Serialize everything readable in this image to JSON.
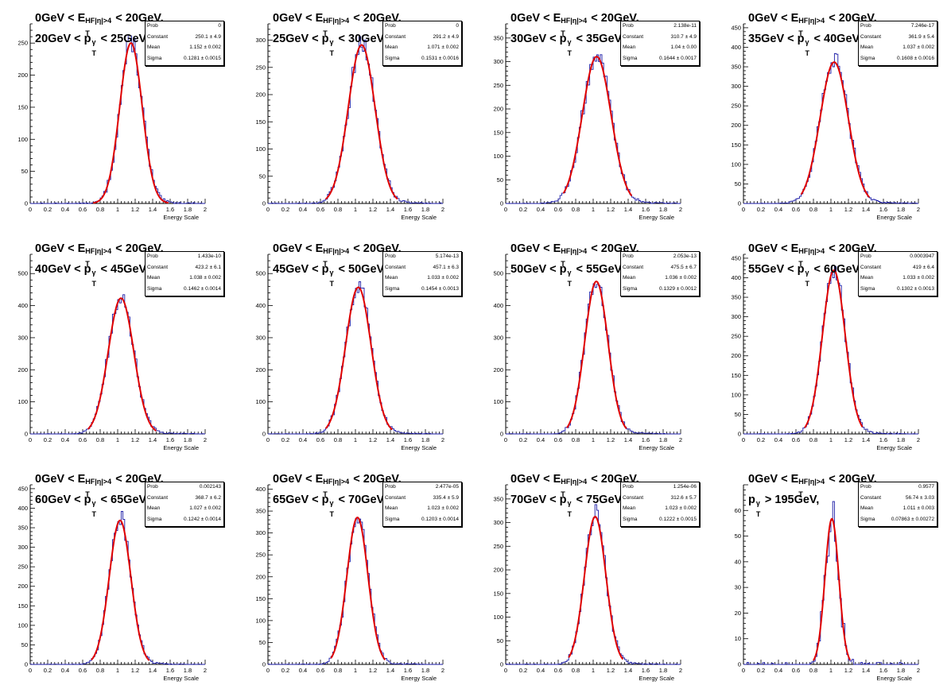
{
  "axis_title_x": "Energy Scale",
  "title_line1": {
    "pre": "0GeV < E",
    "sup": "HF|η|>4",
    "sub": "T",
    "post": " < 20GeV,"
  },
  "stat_labels": {
    "prob": "Prob",
    "constant": "Constant",
    "mean": "Mean",
    "sigma": "Sigma"
  },
  "colors": {
    "histogram": "#1a1aa6",
    "fit": "#e00000",
    "axis": "#000000"
  },
  "chart_data": [
    {
      "type": "histogram",
      "pt_range": "20GeV < p",
      "pt_post": " < 25GeV,",
      "xlim": [
        0,
        2
      ],
      "ylim": [
        0,
        280
      ],
      "yticks": [
        0,
        50,
        100,
        150,
        200,
        250
      ],
      "xticks": [
        0,
        0.2,
        0.4,
        0.6,
        0.8,
        1,
        1.2,
        1.4,
        1.6,
        1.8,
        2
      ],
      "stats": {
        "prob": "0",
        "constant": "250.1 ± 4.9",
        "mean": "1.152 ± 0.002",
        "sigma": "0.1281 ± 0.0015"
      },
      "fit": {
        "constant": 250.1,
        "mean": 1.152,
        "sigma": 0.1281,
        "range": [
          0.72,
          1.58
        ]
      }
    },
    {
      "type": "histogram",
      "pt_range": "25GeV < p",
      "pt_post": " < 30GeV,",
      "xlim": [
        0,
        2
      ],
      "ylim": [
        0,
        330
      ],
      "yticks": [
        0,
        50,
        100,
        150,
        200,
        250,
        300
      ],
      "xticks": [
        0,
        0.2,
        0.4,
        0.6,
        0.8,
        1,
        1.2,
        1.4,
        1.6,
        1.8,
        2
      ],
      "stats": {
        "prob": "0",
        "constant": "291.2 ± 4.9",
        "mean": "1.071 ± 0.002",
        "sigma": "0.1531 ± 0.0016"
      },
      "fit": {
        "constant": 291.2,
        "mean": 1.071,
        "sigma": 0.1531,
        "range": [
          0.66,
          1.48
        ]
      }
    },
    {
      "type": "histogram",
      "pt_range": "30GeV < p",
      "pt_post": " < 35GeV,",
      "xlim": [
        0,
        2
      ],
      "ylim": [
        0,
        380
      ],
      "yticks": [
        0,
        50,
        100,
        150,
        200,
        250,
        300,
        350
      ],
      "xticks": [
        0,
        0.2,
        0.4,
        0.6,
        0.8,
        1,
        1.2,
        1.4,
        1.6,
        1.8,
        2
      ],
      "stats": {
        "prob": "2.138e-11",
        "constant": "310.7 ± 4.9",
        "mean": "1.04 ± 0.00",
        "sigma": "0.1644 ± 0.0017"
      },
      "fit": {
        "constant": 310.7,
        "mean": 1.04,
        "sigma": 0.1644,
        "range": [
          0.66,
          1.44
        ]
      }
    },
    {
      "type": "histogram",
      "pt_range": "35GeV < p",
      "pt_post": " < 40GeV,",
      "xlim": [
        0,
        2
      ],
      "ylim": [
        0,
        460
      ],
      "yticks": [
        0,
        50,
        100,
        150,
        200,
        250,
        300,
        350,
        400,
        450
      ],
      "xticks": [
        0,
        0.2,
        0.4,
        0.6,
        0.8,
        1,
        1.2,
        1.4,
        1.6,
        1.8,
        2
      ],
      "stats": {
        "prob": "7.246e-17",
        "constant": "361.9 ± 5.4",
        "mean": "1.037 ± 0.002",
        "sigma": "0.1608 ± 0.0016"
      },
      "fit": {
        "constant": 361.9,
        "mean": 1.037,
        "sigma": 0.1608,
        "range": [
          0.66,
          1.44
        ]
      }
    },
    {
      "type": "histogram",
      "pt_range": "40GeV < p",
      "pt_post": " < 45GeV,",
      "xlim": [
        0,
        2
      ],
      "ylim": [
        0,
        560
      ],
      "yticks": [
        0,
        100,
        200,
        300,
        400,
        500
      ],
      "xticks": [
        0,
        0.2,
        0.4,
        0.6,
        0.8,
        1,
        1.2,
        1.4,
        1.6,
        1.8,
        2
      ],
      "stats": {
        "prob": "1.433e-10",
        "constant": "423.2 ± 6.1",
        "mean": "1.038 ± 0.002",
        "sigma": "0.1462 ± 0.0014"
      },
      "fit": {
        "constant": 423.2,
        "mean": 1.038,
        "sigma": 0.1462,
        "range": [
          0.66,
          1.44
        ]
      }
    },
    {
      "type": "histogram",
      "pt_range": "45GeV < p",
      "pt_post": " < 50GeV,",
      "xlim": [
        0,
        2
      ],
      "ylim": [
        0,
        560
      ],
      "yticks": [
        0,
        100,
        200,
        300,
        400,
        500
      ],
      "xticks": [
        0,
        0.2,
        0.4,
        0.6,
        0.8,
        1,
        1.2,
        1.4,
        1.6,
        1.8,
        2
      ],
      "stats": {
        "prob": "5.174e-13",
        "constant": "457.1 ± 6.3",
        "mean": "1.033 ± 0.002",
        "sigma": "0.1454 ± 0.0013"
      },
      "fit": {
        "constant": 457.1,
        "mean": 1.033,
        "sigma": 0.1454,
        "range": [
          0.66,
          1.42
        ]
      }
    },
    {
      "type": "histogram",
      "pt_range": "50GeV < p",
      "pt_post": " < 55GeV,",
      "xlim": [
        0,
        2
      ],
      "ylim": [
        0,
        560
      ],
      "yticks": [
        0,
        100,
        200,
        300,
        400,
        500
      ],
      "xticks": [
        0,
        0.2,
        0.4,
        0.6,
        0.8,
        1,
        1.2,
        1.4,
        1.6,
        1.8,
        2
      ],
      "stats": {
        "prob": "2.053e-13",
        "constant": "475.5 ± 6.7",
        "mean": "1.036 ± 0.002",
        "sigma": "0.1329 ± 0.0012"
      },
      "fit": {
        "constant": 475.5,
        "mean": 1.036,
        "sigma": 0.1329,
        "range": [
          0.7,
          1.38
        ]
      }
    },
    {
      "type": "histogram",
      "pt_range": "55GeV < p",
      "pt_post": " < 60GeV,",
      "xlim": [
        0,
        2
      ],
      "ylim": [
        0,
        460
      ],
      "yticks": [
        0,
        50,
        100,
        150,
        200,
        250,
        300,
        350,
        400,
        450
      ],
      "xticks": [
        0,
        0.2,
        0.4,
        0.6,
        0.8,
        1,
        1.2,
        1.4,
        1.6,
        1.8,
        2
      ],
      "stats": {
        "prob": "0.0003947",
        "constant": "419 ± 6.4",
        "mean": "1.033 ± 0.002",
        "sigma": "0.1302 ± 0.0013"
      },
      "fit": {
        "constant": 419,
        "mean": 1.033,
        "sigma": 0.1302,
        "range": [
          0.7,
          1.36
        ]
      }
    },
    {
      "type": "histogram",
      "pt_range": "60GeV < p",
      "pt_post": " < 65GeV,",
      "xlim": [
        0,
        2
      ],
      "ylim": [
        0,
        460
      ],
      "yticks": [
        0,
        50,
        100,
        150,
        200,
        250,
        300,
        350,
        400,
        450
      ],
      "xticks": [
        0,
        0.2,
        0.4,
        0.6,
        0.8,
        1,
        1.2,
        1.4,
        1.6,
        1.8,
        2
      ],
      "stats": {
        "prob": "0.002143",
        "constant": "368.7 ± 6.2",
        "mean": "1.027 ± 0.002",
        "sigma": "0.1242 ± 0.0014"
      },
      "fit": {
        "constant": 368.7,
        "mean": 1.027,
        "sigma": 0.1242,
        "range": [
          0.7,
          1.36
        ]
      }
    },
    {
      "type": "histogram",
      "pt_range": "65GeV < p",
      "pt_post": " < 70GeV,",
      "xlim": [
        0,
        2
      ],
      "ylim": [
        0,
        410
      ],
      "yticks": [
        0,
        50,
        100,
        150,
        200,
        250,
        300,
        350,
        400
      ],
      "xticks": [
        0,
        0.2,
        0.4,
        0.6,
        0.8,
        1,
        1.2,
        1.4,
        1.6,
        1.8,
        2
      ],
      "stats": {
        "prob": "2.477e-05",
        "constant": "335.4 ± 5.9",
        "mean": "1.023 ± 0.002",
        "sigma": "0.1203 ± 0.0014"
      },
      "fit": {
        "constant": 335.4,
        "mean": 1.023,
        "sigma": 0.1203,
        "range": [
          0.72,
          1.34
        ]
      }
    },
    {
      "type": "histogram",
      "pt_range": "70GeV < p",
      "pt_post": " < 75GeV,",
      "xlim": [
        0,
        2
      ],
      "ylim": [
        0,
        380
      ],
      "yticks": [
        0,
        50,
        100,
        150,
        200,
        250,
        300,
        350
      ],
      "xticks": [
        0,
        0.2,
        0.4,
        0.6,
        0.8,
        1,
        1.2,
        1.4,
        1.6,
        1.8,
        2
      ],
      "stats": {
        "prob": "1.254e-06",
        "constant": "312.6 ± 5.7",
        "mean": "1.023 ± 0.002",
        "sigma": "0.1222 ± 0.0015"
      },
      "fit": {
        "constant": 312.6,
        "mean": 1.023,
        "sigma": 0.1222,
        "range": [
          0.72,
          1.34
        ]
      }
    },
    {
      "type": "histogram",
      "pt_range": "p",
      "pt_post": " > 195GeV,",
      "xlim": [
        0,
        2
      ],
      "ylim": [
        0,
        70
      ],
      "yticks": [
        0,
        10,
        20,
        30,
        40,
        50,
        60
      ],
      "xticks": [
        0,
        0.2,
        0.4,
        0.6,
        0.8,
        1,
        1.2,
        1.4,
        1.6,
        1.8,
        2
      ],
      "stats": {
        "prob": "0.9577",
        "constant": "56.74 ± 3.03",
        "mean": "1.011 ± 0.003",
        "sigma": "0.07863 ± 0.00272"
      },
      "fit": {
        "constant": 56.74,
        "mean": 1.011,
        "sigma": 0.07863,
        "range": [
          0.8,
          1.22
        ]
      }
    }
  ]
}
